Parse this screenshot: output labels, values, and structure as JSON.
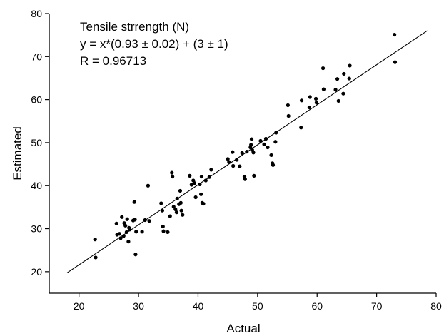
{
  "chart_data": {
    "type": "scatter",
    "title": "",
    "xlabel": "Actual",
    "ylabel": "Estimated",
    "xlim": [
      15,
      80
    ],
    "ylim": [
      15,
      80
    ],
    "xticks": [
      20,
      30,
      40,
      50,
      60,
      70,
      80
    ],
    "yticks": [
      20,
      30,
      40,
      50,
      60,
      70,
      80
    ],
    "grid": false,
    "annotations": [
      "Tensile strrength (N)",
      "y = x*(0.93 ± 0.02) + (3 ± 1)",
      "R = 0.96713"
    ],
    "fit_line": {
      "slope": 0.93,
      "intercept": 3,
      "x_range": [
        18,
        78.5
      ]
    },
    "series": [
      {
        "points": [
          [
            22.7,
            27.5
          ],
          [
            22.8,
            23.3
          ],
          [
            26.3,
            31.2
          ],
          [
            26.4,
            28.6
          ],
          [
            26.8,
            28.8
          ],
          [
            27.0,
            27.8
          ],
          [
            27.2,
            32.7
          ],
          [
            27.5,
            28.3
          ],
          [
            27.6,
            31.3
          ],
          [
            27.8,
            30.7
          ],
          [
            28.0,
            29.2
          ],
          [
            28.1,
            32.2
          ],
          [
            28.3,
            27.0
          ],
          [
            28.4,
            30.2
          ],
          [
            28.5,
            29.8
          ],
          [
            29.1,
            31.9
          ],
          [
            29.3,
            36.2
          ],
          [
            29.4,
            32.1
          ],
          [
            29.5,
            24.0
          ],
          [
            29.6,
            29.3
          ],
          [
            30.6,
            29.3
          ],
          [
            31.1,
            32.0
          ],
          [
            31.6,
            40.0
          ],
          [
            31.8,
            31.8
          ],
          [
            33.8,
            35.9
          ],
          [
            34.0,
            34.2
          ],
          [
            34.1,
            30.5
          ],
          [
            34.2,
            29.4
          ],
          [
            34.9,
            29.2
          ],
          [
            35.3,
            32.9
          ],
          [
            35.6,
            43.0
          ],
          [
            35.7,
            42.1
          ],
          [
            35.9,
            35.1
          ],
          [
            36.2,
            34.5
          ],
          [
            36.4,
            33.8
          ],
          [
            36.5,
            37.0
          ],
          [
            36.8,
            35.7
          ],
          [
            37.0,
            38.8
          ],
          [
            37.1,
            36.0
          ],
          [
            37.2,
            34.2
          ],
          [
            37.4,
            33.2
          ],
          [
            38.6,
            42.3
          ],
          [
            38.9,
            40.2
          ],
          [
            39.2,
            41.2
          ],
          [
            39.4,
            40.6
          ],
          [
            39.6,
            37.3
          ],
          [
            40.3,
            40.3
          ],
          [
            40.5,
            38.0
          ],
          [
            40.7,
            36.0
          ],
          [
            40.9,
            35.8
          ],
          [
            40.6,
            42.1
          ],
          [
            41.3,
            41.2
          ],
          [
            41.9,
            42.0
          ],
          [
            42.2,
            43.7
          ],
          [
            45.0,
            46.2
          ],
          [
            45.2,
            45.5
          ],
          [
            45.8,
            47.8
          ],
          [
            45.9,
            44.6
          ],
          [
            46.5,
            46.0
          ],
          [
            47.0,
            44.5
          ],
          [
            47.4,
            47.6
          ],
          [
            47.8,
            42.1
          ],
          [
            47.9,
            41.5
          ],
          [
            48.2,
            47.9
          ],
          [
            48.8,
            48.9
          ],
          [
            48.9,
            49.5
          ],
          [
            49.0,
            50.8
          ],
          [
            49.1,
            48.3
          ],
          [
            49.3,
            47.7
          ],
          [
            49.4,
            42.3
          ],
          [
            50.5,
            50.4
          ],
          [
            51.1,
            49.6
          ],
          [
            51.4,
            50.9
          ],
          [
            51.7,
            48.9
          ],
          [
            52.3,
            47.1
          ],
          [
            52.5,
            45.2
          ],
          [
            52.6,
            44.8
          ],
          [
            53.0,
            50.2
          ],
          [
            53.1,
            52.3
          ],
          [
            55.1,
            58.7
          ],
          [
            55.2,
            56.2
          ],
          [
            57.3,
            53.5
          ],
          [
            57.4,
            59.8
          ],
          [
            58.7,
            58.2
          ],
          [
            58.8,
            60.6
          ],
          [
            59.8,
            60.2
          ],
          [
            59.9,
            59.3
          ],
          [
            61.0,
            67.3
          ],
          [
            61.1,
            62.4
          ],
          [
            63.1,
            62.3
          ],
          [
            63.4,
            64.8
          ],
          [
            63.6,
            59.7
          ],
          [
            64.4,
            61.4
          ],
          [
            64.5,
            66.0
          ],
          [
            65.4,
            64.9
          ],
          [
            65.5,
            67.9
          ],
          [
            73.0,
            75.1
          ],
          [
            73.1,
            68.7
          ]
        ]
      }
    ]
  }
}
